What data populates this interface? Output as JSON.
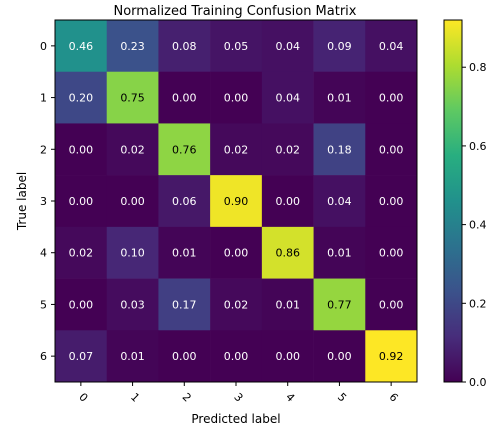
{
  "chart_data": {
    "type": "heatmap",
    "title": "Normalized Training Confusion Matrix",
    "xlabel": "Predicted label",
    "ylabel": "True label",
    "x_tick_labels": [
      "0",
      "1",
      "2",
      "3",
      "4",
      "5",
      "6"
    ],
    "y_tick_labels": [
      "0",
      "1",
      "2",
      "3",
      "4",
      "5",
      "6"
    ],
    "matrix": [
      [
        0.46,
        0.23,
        0.08,
        0.05,
        0.04,
        0.09,
        0.04
      ],
      [
        0.2,
        0.75,
        0.0,
        0.0,
        0.04,
        0.01,
        0.0
      ],
      [
        0.0,
        0.02,
        0.76,
        0.02,
        0.02,
        0.18,
        0.0
      ],
      [
        0.0,
        0.0,
        0.06,
        0.9,
        0.0,
        0.04,
        0.0
      ],
      [
        0.02,
        0.1,
        0.01,
        0.0,
        0.86,
        0.01,
        0.0
      ],
      [
        0.0,
        0.03,
        0.17,
        0.02,
        0.01,
        0.77,
        0.0
      ],
      [
        0.07,
        0.01,
        0.0,
        0.0,
        0.0,
        0.0,
        0.92
      ]
    ],
    "value_labels": [
      [
        "0.46",
        "0.23",
        "0.08",
        "0.05",
        "0.04",
        "0.09",
        "0.04"
      ],
      [
        "0.20",
        "0.75",
        "0.00",
        "0.00",
        "0.04",
        "0.01",
        "0.00"
      ],
      [
        "0.00",
        "0.02",
        "0.76",
        "0.02",
        "0.02",
        "0.18",
        "0.00"
      ],
      [
        "0.00",
        "0.00",
        "0.06",
        "0.90",
        "0.00",
        "0.04",
        "0.00"
      ],
      [
        "0.02",
        "0.10",
        "0.01",
        "0.00",
        "0.86",
        "0.01",
        "0.00"
      ],
      [
        "0.00",
        "0.03",
        "0.17",
        "0.02",
        "0.01",
        "0.77",
        "0.00"
      ],
      [
        "0.07",
        "0.01",
        "0.00",
        "0.00",
        "0.00",
        "0.00",
        "0.92"
      ]
    ],
    "colormap": "viridis",
    "color_range": [
      0.0,
      0.92
    ],
    "colorbar_ticks": [
      {
        "value": 0.0,
        "label": "0.0"
      },
      {
        "value": 0.2,
        "label": "0.2"
      },
      {
        "value": 0.4,
        "label": "0.4"
      },
      {
        "value": 0.6,
        "label": "0.6"
      },
      {
        "value": 0.8,
        "label": "0.8"
      }
    ],
    "grid": false
  }
}
